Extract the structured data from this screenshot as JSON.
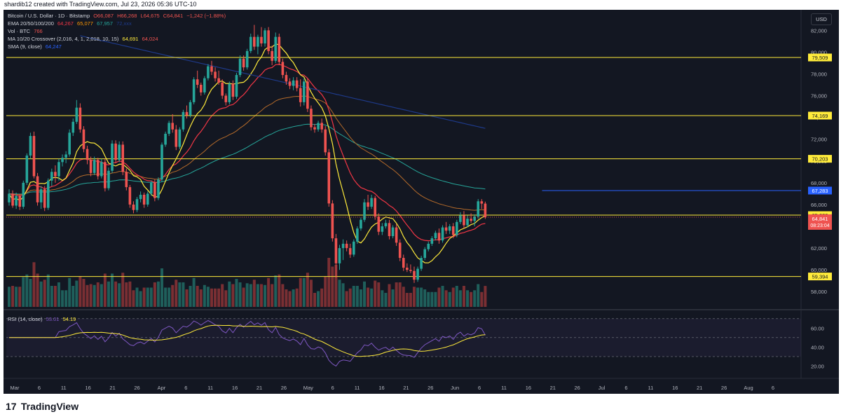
{
  "header": {
    "watermark_text": "shardib12 created with TradingView.com, Jul 23, 2026 05:36 UTC-10",
    "currency_button": "USD"
  },
  "legend": {
    "symbol_line": {
      "name": "Bitcoin / U.S. Dollar · 1D · Bitstamp",
      "open": "O66,087",
      "high": "H66,268",
      "low": "L64,675",
      "close": "C64,841",
      "change": "−1,242 (−1.88%)"
    },
    "ema_line": {
      "label": "EMA 20/50/100/200",
      "v1": "64,267",
      "v2": "65,077",
      "v3": "67,957",
      "v4": "72,xxx"
    },
    "vol_line": {
      "label": "Vol · BTC",
      "value": "766"
    },
    "ma_line": {
      "label": "MA 10/20 Crossover (2,016, 4, 1, 2,018, 10, 15)",
      "v1": "64,691",
      "v2": "64,024"
    },
    "sma_line": {
      "label": "SMA (9, close)",
      "value": "64,247"
    }
  },
  "rsi": {
    "label": "RSI (14, close)",
    "v1": "53.01",
    "v2": "54.19",
    "ticks": [
      "60.00",
      "40.00",
      "20.00"
    ]
  },
  "footer": {
    "brand": "TradingView",
    "logo_mark": "17"
  },
  "chart_data": {
    "type": "candlestick",
    "symbol": "Bitcoin / U.S. Dollar · 1D · Bitstamp",
    "ylim": [
      56600,
      83500
    ],
    "yticks": [
      "82,000",
      "80,000",
      "78,000",
      "76,000",
      "74,000",
      "72,000",
      "70,000",
      "68,000",
      "66,000",
      "64,000",
      "62,000",
      "60,000",
      "58,000"
    ],
    "horizontal_levels": [
      {
        "value": 79509,
        "label": "79,509",
        "color": "#ffeb3b"
      },
      {
        "value": 74169,
        "label": "74,169",
        "color": "#ffeb3b"
      },
      {
        "value": 70203,
        "label": "70,203",
        "color": "#ffeb3b"
      },
      {
        "value": 67283,
        "label": "67,283",
        "color": "#2962ff"
      },
      {
        "value": 65030,
        "label": "65,030",
        "color": "#ffeb3b"
      },
      {
        "value": 59394,
        "label": "59,394",
        "color": "#ffeb3b"
      }
    ],
    "last_price": {
      "value": 64841,
      "label": "64,841",
      "countdown": "08:23:04"
    },
    "x_axis_labels": [
      "Mar",
      "6",
      "11",
      "16",
      "21",
      "26",
      "Apr",
      "6",
      "11",
      "16",
      "21",
      "26",
      "May",
      "6",
      "11",
      "16",
      "21",
      "26",
      "Jun",
      "6",
      "11",
      "16",
      "21",
      "26",
      "Jul",
      "6",
      "11",
      "16",
      "21",
      "26",
      "Aug",
      "6"
    ],
    "candles": [
      {
        "o": 66200,
        "h": 67400,
        "l": 65900,
        "c": 67000
      },
      {
        "o": 67000,
        "h": 67300,
        "l": 65700,
        "c": 65900
      },
      {
        "o": 65900,
        "h": 67100,
        "l": 65600,
        "c": 66800
      },
      {
        "o": 66800,
        "h": 67000,
        "l": 65500,
        "c": 65800
      },
      {
        "o": 65800,
        "h": 68200,
        "l": 65600,
        "c": 68000
      },
      {
        "o": 68000,
        "h": 70700,
        "l": 67800,
        "c": 70500
      },
      {
        "o": 70500,
        "h": 72600,
        "l": 70200,
        "c": 72300
      },
      {
        "o": 72300,
        "h": 72700,
        "l": 68400,
        "c": 68600
      },
      {
        "o": 68600,
        "h": 68900,
        "l": 65900,
        "c": 66200
      },
      {
        "o": 66200,
        "h": 67700,
        "l": 65600,
        "c": 67400
      },
      {
        "o": 67400,
        "h": 67700,
        "l": 65400,
        "c": 65700
      },
      {
        "o": 65700,
        "h": 68400,
        "l": 65500,
        "c": 68200
      },
      {
        "o": 68200,
        "h": 69300,
        "l": 67700,
        "c": 69000
      },
      {
        "o": 69000,
        "h": 69600,
        "l": 68000,
        "c": 68600
      },
      {
        "o": 68600,
        "h": 70200,
        "l": 68200,
        "c": 69900
      },
      {
        "o": 69900,
        "h": 70600,
        "l": 69500,
        "c": 70300
      },
      {
        "o": 70300,
        "h": 70900,
        "l": 69800,
        "c": 70600
      },
      {
        "o": 70600,
        "h": 72900,
        "l": 70400,
        "c": 72600
      },
      {
        "o": 72600,
        "h": 73900,
        "l": 72300,
        "c": 73600
      },
      {
        "o": 73600,
        "h": 75600,
        "l": 73400,
        "c": 74900
      },
      {
        "o": 74900,
        "h": 75300,
        "l": 72600,
        "c": 72900
      },
      {
        "o": 72900,
        "h": 73200,
        "l": 70800,
        "c": 71100
      },
      {
        "o": 71100,
        "h": 71400,
        "l": 69700,
        "c": 70100
      },
      {
        "o": 70100,
        "h": 70400,
        "l": 68600,
        "c": 68900
      },
      {
        "o": 68900,
        "h": 70400,
        "l": 68700,
        "c": 70100
      },
      {
        "o": 70100,
        "h": 70300,
        "l": 68300,
        "c": 68600
      },
      {
        "o": 68600,
        "h": 70200,
        "l": 68400,
        "c": 69900
      },
      {
        "o": 69900,
        "h": 70200,
        "l": 67200,
        "c": 67500
      },
      {
        "o": 67500,
        "h": 69400,
        "l": 67300,
        "c": 69100
      },
      {
        "o": 69100,
        "h": 71900,
        "l": 68900,
        "c": 71600
      },
      {
        "o": 71600,
        "h": 71900,
        "l": 69800,
        "c": 70100
      },
      {
        "o": 70100,
        "h": 71800,
        "l": 69900,
        "c": 71500
      },
      {
        "o": 71500,
        "h": 71800,
        "l": 68700,
        "c": 69000
      },
      {
        "o": 69000,
        "h": 69300,
        "l": 67300,
        "c": 67600
      },
      {
        "o": 67600,
        "h": 67800,
        "l": 65700,
        "c": 66000
      },
      {
        "o": 66000,
        "h": 66300,
        "l": 65200,
        "c": 65500
      },
      {
        "o": 65500,
        "h": 66700,
        "l": 65300,
        "c": 66500
      },
      {
        "o": 66500,
        "h": 67200,
        "l": 66200,
        "c": 66900
      },
      {
        "o": 66900,
        "h": 67100,
        "l": 65700,
        "c": 66000
      },
      {
        "o": 66000,
        "h": 67200,
        "l": 65800,
        "c": 67000
      },
      {
        "o": 67000,
        "h": 68200,
        "l": 66800,
        "c": 68000
      },
      {
        "o": 68000,
        "h": 68300,
        "l": 66300,
        "c": 66600
      },
      {
        "o": 66600,
        "h": 68500,
        "l": 66400,
        "c": 68300
      },
      {
        "o": 68300,
        "h": 71700,
        "l": 68100,
        "c": 71500
      },
      {
        "o": 71500,
        "h": 72700,
        "l": 71300,
        "c": 72500
      },
      {
        "o": 72500,
        "h": 73700,
        "l": 72300,
        "c": 73500
      },
      {
        "o": 73500,
        "h": 74300,
        "l": 72600,
        "c": 72900
      },
      {
        "o": 72900,
        "h": 73300,
        "l": 71000,
        "c": 71300
      },
      {
        "o": 71300,
        "h": 73100,
        "l": 71100,
        "c": 72900
      },
      {
        "o": 72900,
        "h": 74700,
        "l": 72700,
        "c": 74500
      },
      {
        "o": 74500,
        "h": 75100,
        "l": 73900,
        "c": 74200
      },
      {
        "o": 74200,
        "h": 75600,
        "l": 74000,
        "c": 75400
      },
      {
        "o": 75400,
        "h": 77700,
        "l": 75200,
        "c": 77500
      },
      {
        "o": 77500,
        "h": 78300,
        "l": 76700,
        "c": 77000
      },
      {
        "o": 77000,
        "h": 77200,
        "l": 76000,
        "c": 76300
      },
      {
        "o": 76300,
        "h": 77800,
        "l": 76100,
        "c": 77600
      },
      {
        "o": 77600,
        "h": 78900,
        "l": 77400,
        "c": 78700
      },
      {
        "o": 78700,
        "h": 79200,
        "l": 77900,
        "c": 78200
      },
      {
        "o": 78200,
        "h": 78600,
        "l": 77300,
        "c": 77600
      },
      {
        "o": 77600,
        "h": 78300,
        "l": 77000,
        "c": 77200
      },
      {
        "o": 77200,
        "h": 77500,
        "l": 75700,
        "c": 76000
      },
      {
        "o": 76000,
        "h": 76200,
        "l": 75100,
        "c": 75400
      },
      {
        "o": 75400,
        "h": 77300,
        "l": 75200,
        "c": 77100
      },
      {
        "o": 77100,
        "h": 77400,
        "l": 75600,
        "c": 75900
      },
      {
        "o": 75900,
        "h": 78100,
        "l": 75700,
        "c": 77900
      },
      {
        "o": 77900,
        "h": 79700,
        "l": 77700,
        "c": 79400
      },
      {
        "o": 79400,
        "h": 79700,
        "l": 78300,
        "c": 78600
      },
      {
        "o": 78600,
        "h": 80300,
        "l": 78400,
        "c": 80100
      },
      {
        "o": 80100,
        "h": 81700,
        "l": 79900,
        "c": 81400
      },
      {
        "o": 81400,
        "h": 82500,
        "l": 80200,
        "c": 80500
      },
      {
        "o": 80500,
        "h": 81600,
        "l": 79800,
        "c": 81400
      },
      {
        "o": 81400,
        "h": 82300,
        "l": 80500,
        "c": 80800
      },
      {
        "o": 80800,
        "h": 82200,
        "l": 80500,
        "c": 82000
      },
      {
        "o": 82000,
        "h": 82300,
        "l": 79800,
        "c": 80100
      },
      {
        "o": 80100,
        "h": 80600,
        "l": 78800,
        "c": 79200
      },
      {
        "o": 79200,
        "h": 81800,
        "l": 79000,
        "c": 81400
      },
      {
        "o": 81400,
        "h": 81700,
        "l": 78800,
        "c": 79100
      },
      {
        "o": 79100,
        "h": 79400,
        "l": 77600,
        "c": 77900
      },
      {
        "o": 77900,
        "h": 78200,
        "l": 77000,
        "c": 77300
      },
      {
        "o": 77300,
        "h": 77600,
        "l": 76600,
        "c": 76900
      },
      {
        "o": 76900,
        "h": 77700,
        "l": 76500,
        "c": 77400
      },
      {
        "o": 77400,
        "h": 77700,
        "l": 76400,
        "c": 76700
      },
      {
        "o": 76700,
        "h": 77500,
        "l": 75000,
        "c": 75400
      },
      {
        "o": 75400,
        "h": 77600,
        "l": 75100,
        "c": 77300
      },
      {
        "o": 77300,
        "h": 77600,
        "l": 74500,
        "c": 74800
      },
      {
        "o": 74800,
        "h": 75100,
        "l": 72800,
        "c": 73100
      },
      {
        "o": 73100,
        "h": 73400,
        "l": 72600,
        "c": 72900
      },
      {
        "o": 72900,
        "h": 73700,
        "l": 72700,
        "c": 73500
      },
      {
        "o": 73500,
        "h": 73900,
        "l": 72600,
        "c": 72900
      },
      {
        "o": 72900,
        "h": 73200,
        "l": 70500,
        "c": 70800
      },
      {
        "o": 70800,
        "h": 71100,
        "l": 65800,
        "c": 66100
      },
      {
        "o": 66100,
        "h": 66400,
        "l": 62600,
        "c": 62900
      },
      {
        "o": 62900,
        "h": 63300,
        "l": 59300,
        "c": 60600
      },
      {
        "o": 60600,
        "h": 62300,
        "l": 60000,
        "c": 62000
      },
      {
        "o": 62000,
        "h": 62800,
        "l": 60900,
        "c": 62400
      },
      {
        "o": 62400,
        "h": 62700,
        "l": 61700,
        "c": 62000
      },
      {
        "o": 62000,
        "h": 62400,
        "l": 61100,
        "c": 61400
      },
      {
        "o": 61400,
        "h": 62800,
        "l": 61200,
        "c": 62600
      },
      {
        "o": 62600,
        "h": 64000,
        "l": 62400,
        "c": 63800
      },
      {
        "o": 63800,
        "h": 64800,
        "l": 63600,
        "c": 64600
      },
      {
        "o": 64600,
        "h": 66500,
        "l": 64400,
        "c": 66200
      },
      {
        "o": 66200,
        "h": 66900,
        "l": 65500,
        "c": 65800
      },
      {
        "o": 65800,
        "h": 66900,
        "l": 65600,
        "c": 66600
      },
      {
        "o": 66600,
        "h": 66800,
        "l": 64600,
        "c": 64900
      },
      {
        "o": 64900,
        "h": 65200,
        "l": 63200,
        "c": 63500
      },
      {
        "o": 63500,
        "h": 64300,
        "l": 63200,
        "c": 64000
      },
      {
        "o": 64000,
        "h": 64600,
        "l": 63800,
        "c": 64300
      },
      {
        "o": 64300,
        "h": 64600,
        "l": 62800,
        "c": 63100
      },
      {
        "o": 63100,
        "h": 64100,
        "l": 62900,
        "c": 63900
      },
      {
        "o": 63900,
        "h": 64200,
        "l": 62200,
        "c": 62500
      },
      {
        "o": 62500,
        "h": 62800,
        "l": 60800,
        "c": 61100
      },
      {
        "o": 61100,
        "h": 61400,
        "l": 59900,
        "c": 60200
      },
      {
        "o": 60200,
        "h": 60600,
        "l": 59800,
        "c": 60000
      },
      {
        "o": 60000,
        "h": 60500,
        "l": 59700,
        "c": 59900
      },
      {
        "o": 59900,
        "h": 60300,
        "l": 58800,
        "c": 59100
      },
      {
        "o": 59100,
        "h": 60300,
        "l": 58900,
        "c": 60100
      },
      {
        "o": 60100,
        "h": 61300,
        "l": 59900,
        "c": 61100
      },
      {
        "o": 61100,
        "h": 62100,
        "l": 60900,
        "c": 61900
      },
      {
        "o": 61900,
        "h": 62600,
        "l": 61700,
        "c": 62400
      },
      {
        "o": 62400,
        "h": 63100,
        "l": 62200,
        "c": 62900
      },
      {
        "o": 62900,
        "h": 63600,
        "l": 62700,
        "c": 63400
      },
      {
        "o": 63400,
        "h": 63800,
        "l": 62400,
        "c": 62700
      },
      {
        "o": 62700,
        "h": 64100,
        "l": 62500,
        "c": 63900
      },
      {
        "o": 63900,
        "h": 64400,
        "l": 63300,
        "c": 63600
      },
      {
        "o": 63600,
        "h": 64200,
        "l": 63300,
        "c": 64000
      },
      {
        "o": 64000,
        "h": 64300,
        "l": 62900,
        "c": 63200
      },
      {
        "o": 63200,
        "h": 64600,
        "l": 63000,
        "c": 64400
      },
      {
        "o": 64400,
        "h": 65300,
        "l": 64200,
        "c": 65000
      },
      {
        "o": 65000,
        "h": 65400,
        "l": 63800,
        "c": 64100
      },
      {
        "o": 64100,
        "h": 65000,
        "l": 63900,
        "c": 64700
      },
      {
        "o": 64700,
        "h": 65200,
        "l": 64300,
        "c": 64500
      },
      {
        "o": 64500,
        "h": 65100,
        "l": 64000,
        "c": 64900
      },
      {
        "o": 64900,
        "h": 66500,
        "l": 64700,
        "c": 66300
      },
      {
        "o": 66300,
        "h": 66500,
        "l": 65600,
        "c": 66087
      },
      {
        "o": 66087,
        "h": 66268,
        "l": 64675,
        "c": 64841
      }
    ],
    "volume_shape": "relative",
    "rsi_series": {
      "name": "RSI (14, close)",
      "last": 53.01
    },
    "rsi_ma": {
      "name": "RSI MA",
      "last": 54.19
    }
  }
}
